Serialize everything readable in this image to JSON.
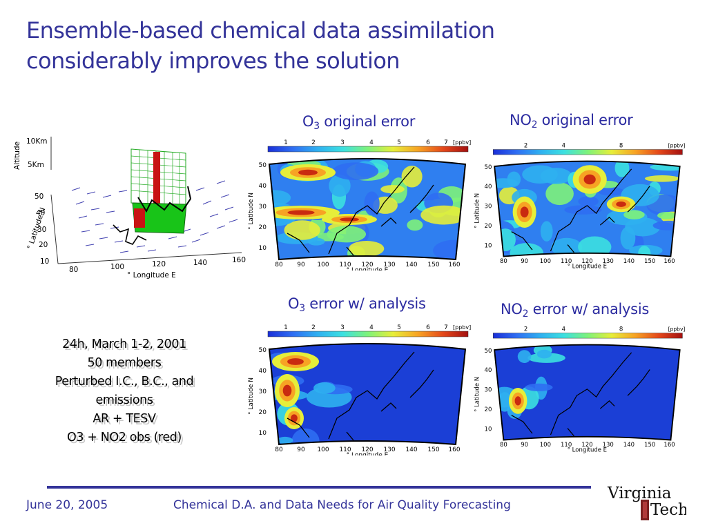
{
  "title": {
    "line1": "Ensemble-based chemical data assimilation",
    "line2": "considerably improves the solution"
  },
  "panels": {
    "o3_original": {
      "prefix": "O",
      "sub": "3",
      "suffix": " original error"
    },
    "no2_original": {
      "prefix": "NO",
      "sub": "2",
      "suffix": " original error"
    },
    "o3_analysis": {
      "prefix": "O",
      "sub": "3",
      "suffix": " error w/ analysis"
    },
    "no2_analysis": {
      "prefix": "NO",
      "sub": "2",
      "suffix": " error w/ analysis"
    }
  },
  "maps": {
    "o3_colorbar_ticks": [
      "1",
      "2",
      "3",
      "4",
      "5",
      "6",
      "7"
    ],
    "no2_colorbar_ticks": [
      "2",
      "4",
      "8"
    ],
    "unit": "[ppbv]",
    "lon_ticks": [
      "80",
      "90",
      "100",
      "110",
      "120",
      "130",
      "140",
      "150",
      "160"
    ],
    "lat_ticks": [
      "50",
      "40",
      "30",
      "20",
      "10"
    ],
    "xlabel": "° Longitude E",
    "ylabel": "° Latitude N"
  },
  "domain3d": {
    "altitude_label": "Altitude",
    "alt_ticks": [
      "10Km",
      "5Km"
    ],
    "lat_ticks": [
      "50",
      "40",
      "30",
      "20",
      "10"
    ],
    "lat_label": "° Latitude N",
    "lon_ticks": [
      "80",
      "100",
      "120",
      "140",
      "160"
    ],
    "lon_label": "° Longitude E"
  },
  "notes": [
    "24h, March 1-2, 2001",
    "50 members",
    "Perturbed I.C., B.C., and",
    "emissions",
    "AR + TESV",
    "O3 + NO2 obs (red)"
  ],
  "footer": {
    "date": "June 20, 2005",
    "talk": "Chemical D.A. and Data Needs for Air Quality Forecasting"
  },
  "logo": {
    "line1": "Virginia",
    "line2": "Tech"
  },
  "colors": {
    "accent": "#333399",
    "map_low": "#1f4fd6",
    "map_high": "#e23a12"
  }
}
